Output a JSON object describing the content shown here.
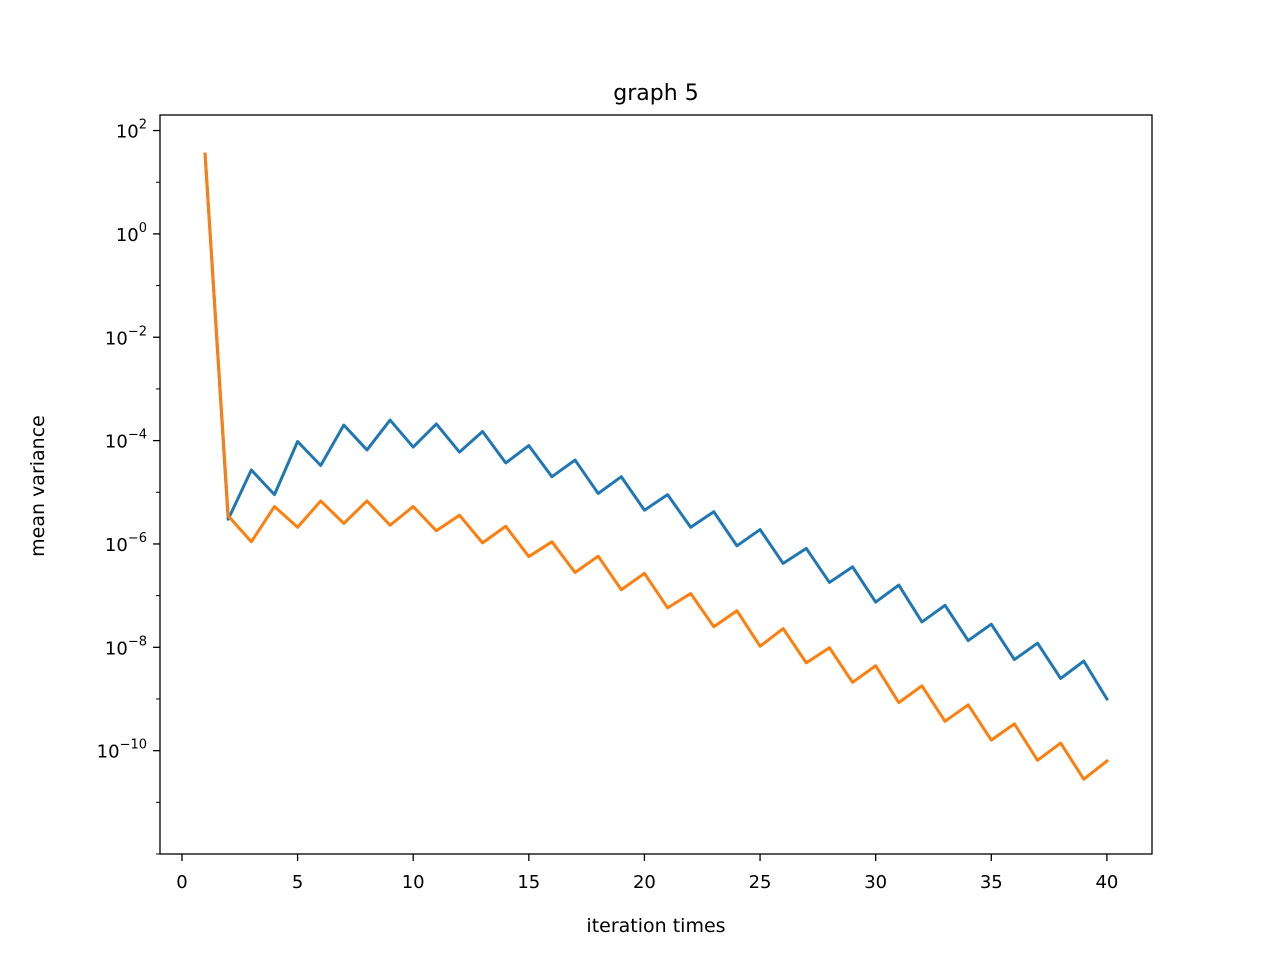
{
  "chart_data": {
    "type": "line",
    "title": "graph 5",
    "xlabel": "iteration times",
    "ylabel": "mean variance",
    "yscale": "log",
    "xlim": [
      -0.95,
      41.95
    ],
    "ylim": [
      1e-12,
      200
    ],
    "x_ticks": [
      0,
      5,
      10,
      15,
      20,
      25,
      30,
      35,
      40
    ],
    "y_ticks": [
      {
        "base": "10",
        "exp": "2",
        "value": 100
      },
      {
        "base": "10",
        "exp": "0",
        "value": 1
      },
      {
        "base": "10",
        "exp": "−2",
        "value": 0.01
      },
      {
        "base": "10",
        "exp": "−4",
        "value": 0.0001
      },
      {
        "base": "10",
        "exp": "−6",
        "value": 1e-06
      },
      {
        "base": "10",
        "exp": "−8",
        "value": 1e-08
      },
      {
        "base": "10",
        "exp": "−10",
        "value": 1e-10
      }
    ],
    "grid": false,
    "legend": false,
    "x": [
      1,
      2,
      3,
      4,
      5,
      6,
      7,
      8,
      9,
      10,
      11,
      12,
      13,
      14,
      15,
      16,
      17,
      18,
      19,
      20,
      21,
      22,
      23,
      24,
      25,
      26,
      27,
      28,
      29,
      30,
      31,
      32,
      33,
      34,
      35,
      36,
      37,
      38,
      39,
      40
    ],
    "series": [
      {
        "color": "#1f77b4",
        "values": [
          35,
          3e-06,
          2.7e-05,
          9e-06,
          9.6e-05,
          3.3e-05,
          0.0002,
          6.6e-05,
          0.00025,
          7.5e-05,
          0.00021,
          6e-05,
          0.00015,
          3.7e-05,
          8e-05,
          2e-05,
          4.2e-05,
          9.5e-06,
          2e-05,
          4.5e-06,
          9e-06,
          2.1e-06,
          4.2e-06,
          9.2e-07,
          1.9e-06,
          4.2e-07,
          8.2e-07,
          1.8e-07,
          3.6e-07,
          7.5e-08,
          1.6e-07,
          3.1e-08,
          6.5e-08,
          1.35e-08,
          2.8e-08,
          5.8e-09,
          1.2e-08,
          2.5e-09,
          5.4e-09,
          1e-09
        ]
      },
      {
        "color": "#ff7f0e",
        "values": [
          35,
          3.5e-06,
          1.1e-06,
          5.3e-06,
          2.1e-06,
          6.8e-06,
          2.5e-06,
          6.8e-06,
          2.3e-06,
          5.3e-06,
          1.8e-06,
          3.6e-06,
          1.05e-06,
          2.2e-06,
          5.7e-07,
          1.1e-06,
          2.8e-07,
          5.8e-07,
          1.3e-07,
          2.7e-07,
          5.8e-08,
          1.1e-07,
          2.5e-08,
          5.1e-08,
          1.05e-08,
          2.3e-08,
          5e-09,
          9.8e-09,
          2.1e-09,
          4.4e-09,
          8.5e-10,
          1.8e-09,
          3.7e-10,
          7.7e-10,
          1.6e-10,
          3.3e-10,
          6.5e-11,
          1.4e-10,
          2.8e-11,
          6.3e-11
        ]
      }
    ]
  }
}
